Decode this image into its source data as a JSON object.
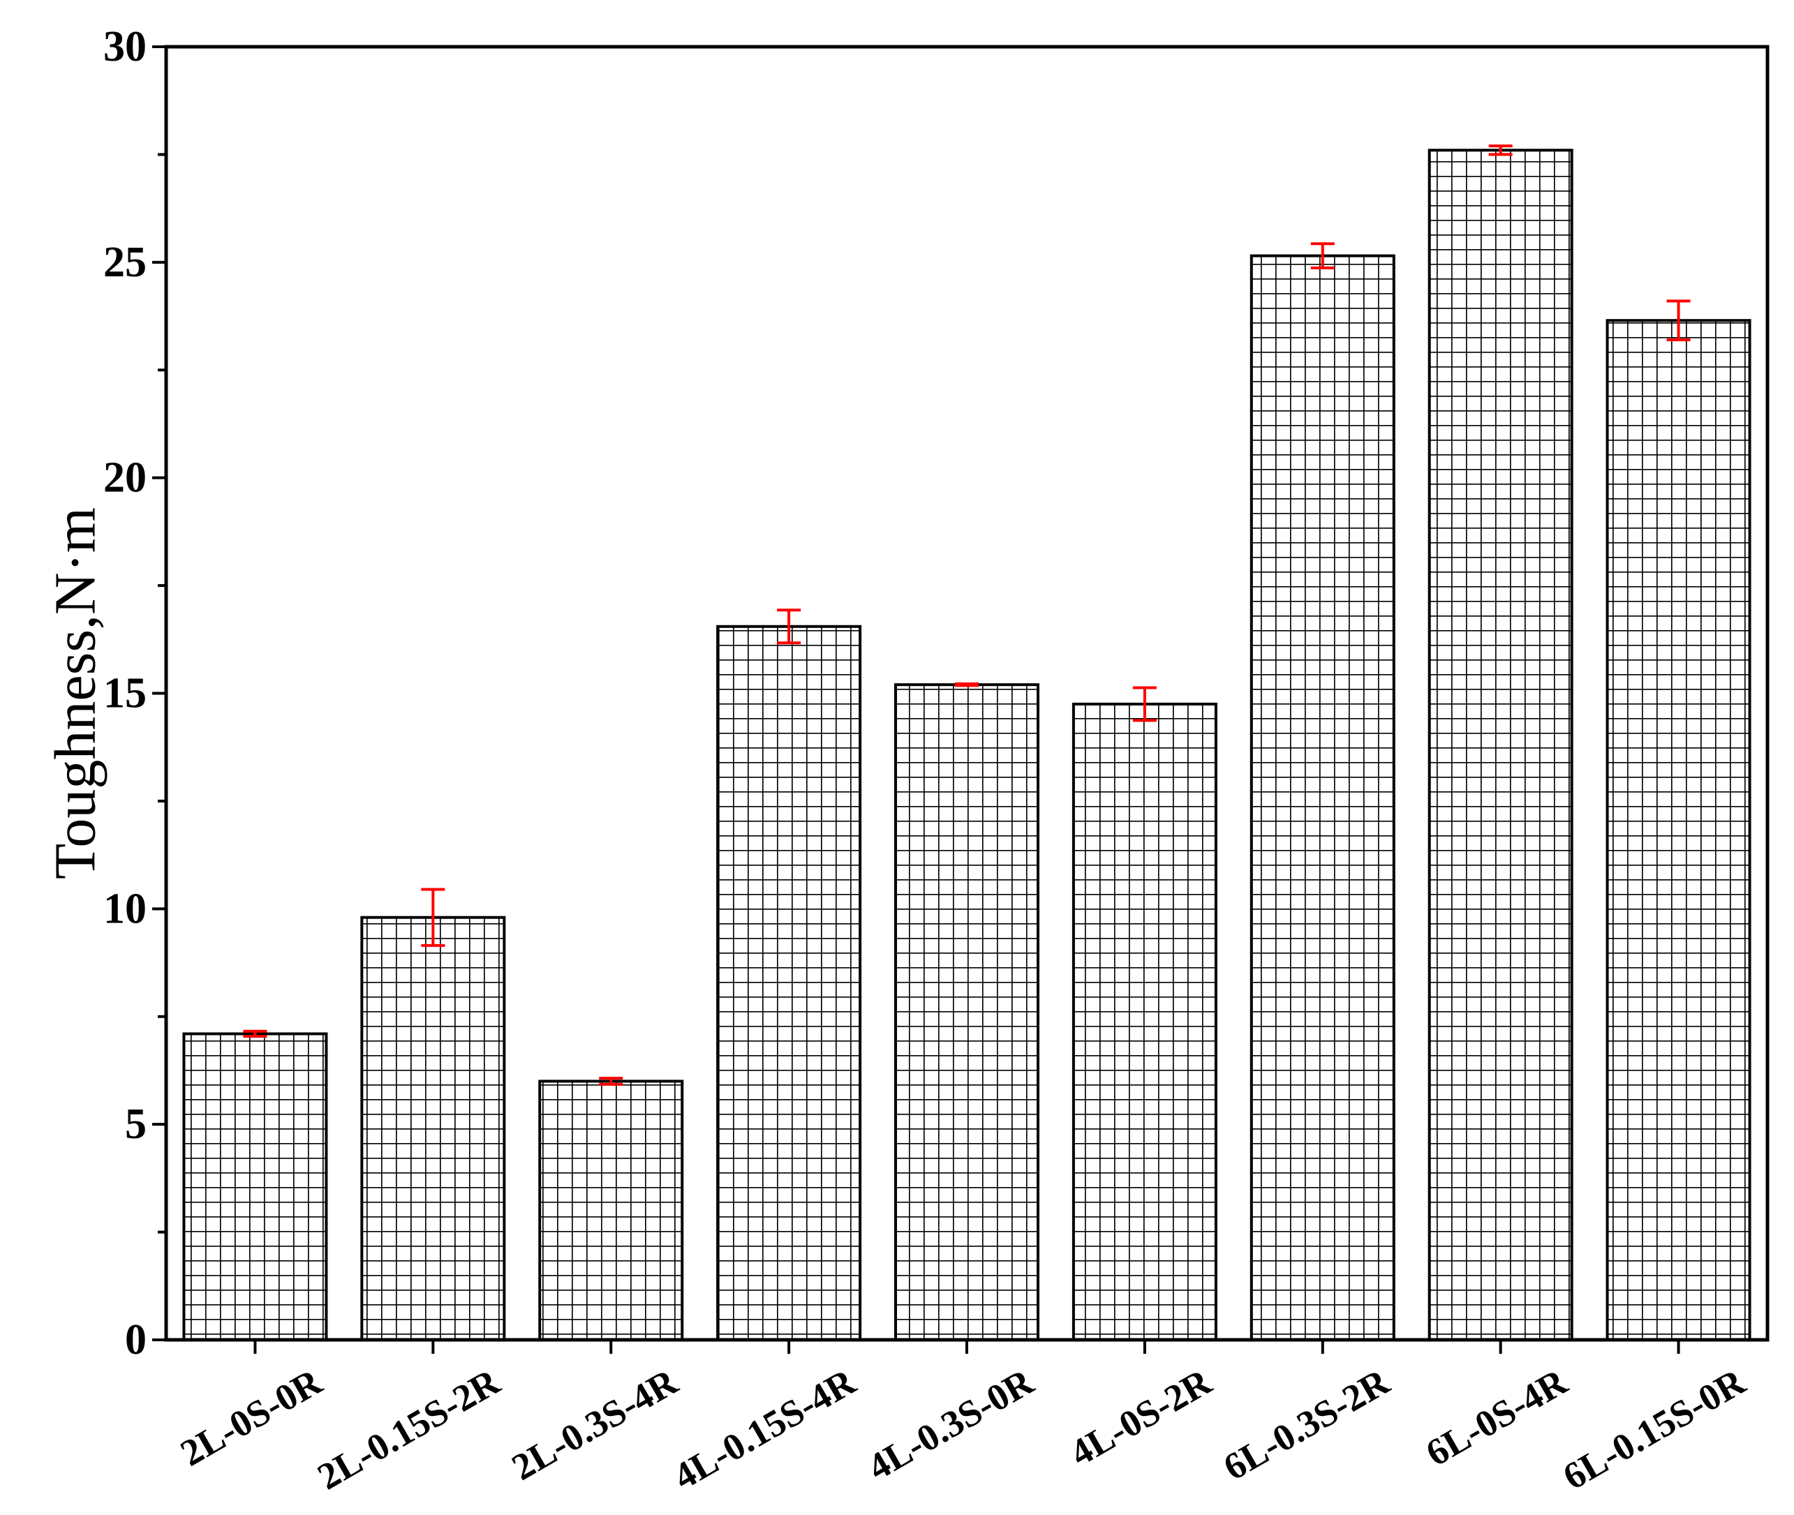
{
  "chart_data": {
    "type": "bar",
    "title": "",
    "xlabel": "",
    "ylabel": "Toughness,N·m",
    "ylim": [
      0,
      30
    ],
    "yticks": [
      "0",
      "5",
      "10",
      "15",
      "20",
      "25",
      "30"
    ],
    "categories": [
      "2L-0S-0R",
      "2L-0.15S-2R",
      "2L-0.3S-4R",
      "4L-0.15S-4R",
      "4L-0.3S-0R",
      "4L-0S-2R",
      "6L-0.3S-2R",
      "6L-0S-4R",
      "6L-0.15S-0R"
    ],
    "values": [
      7.1,
      9.8,
      6.0,
      16.55,
      15.2,
      14.75,
      25.15,
      27.6,
      23.65
    ],
    "errors": [
      0.06,
      0.65,
      0.07,
      0.38,
      0.02,
      0.38,
      0.28,
      0.1,
      0.45
    ],
    "bar_fill": "hatched grid",
    "bar_edge_color": "#000000",
    "error_bar_color": "#ff0000",
    "grid": false,
    "legend": "none"
  }
}
